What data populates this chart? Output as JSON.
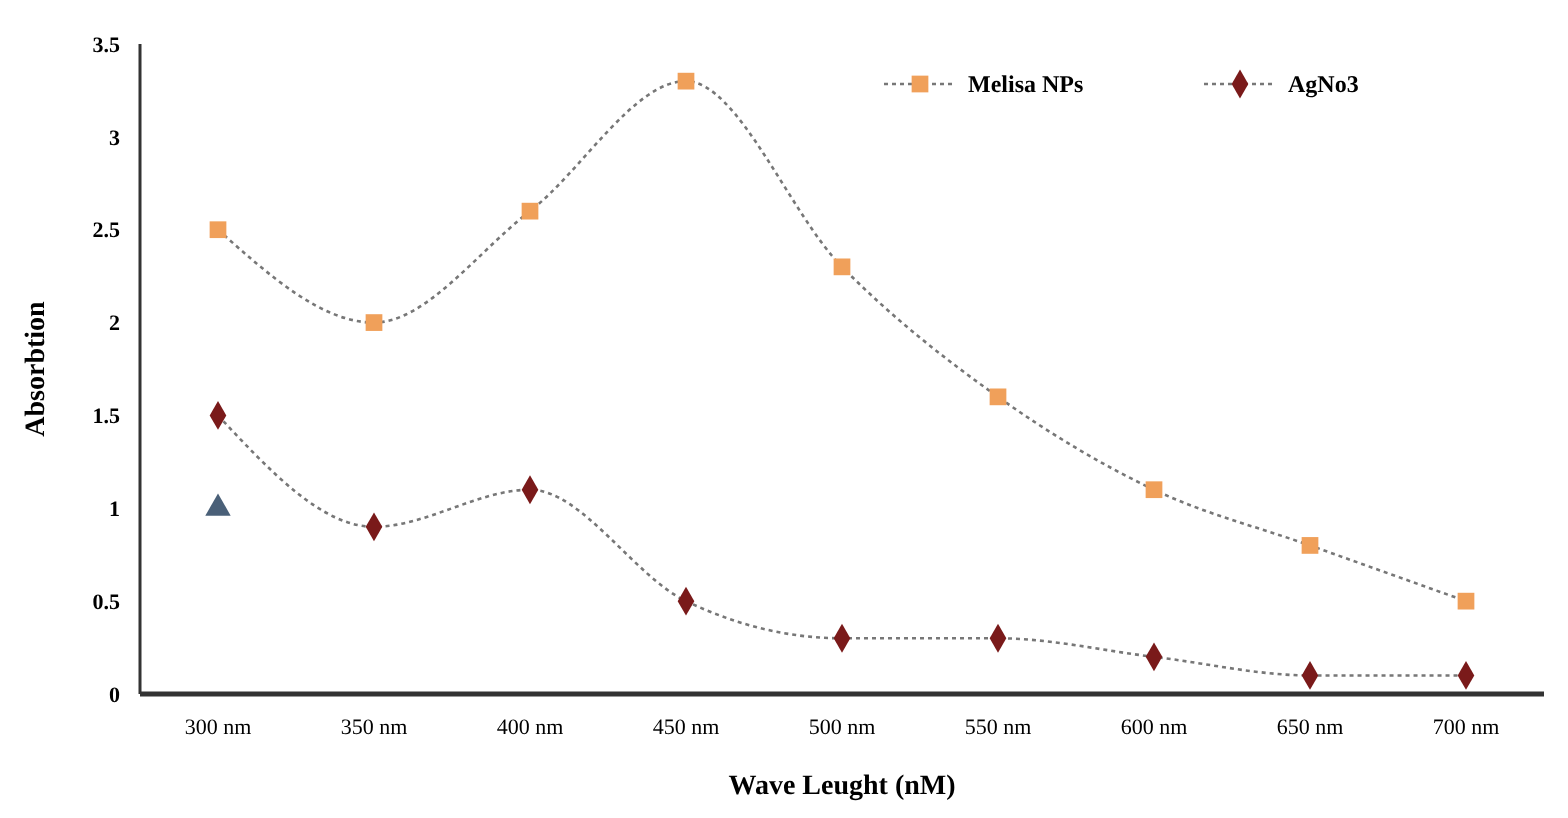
{
  "chart_data": {
    "type": "line",
    "xlabel": "Wave Leught (nM)",
    "ylabel": "Absorbtion",
    "categories": [
      "300 nm",
      "350 nm",
      "400 nm",
      "450 nm",
      "500 nm",
      "550 nm",
      "600 nm",
      "650 nm",
      "700 nm"
    ],
    "series": [
      {
        "name": "Melisa NPs",
        "color": "#f0a05a",
        "marker": "square",
        "values": [
          2.5,
          2.0,
          2.6,
          3.3,
          2.3,
          1.6,
          1.1,
          0.8,
          0.5
        ]
      },
      {
        "name": "AgNo3",
        "color": "#7a1a1a",
        "marker": "diamond",
        "values": [
          1.5,
          0.9,
          1.1,
          0.5,
          0.3,
          0.3,
          0.2,
          0.1,
          0.1
        ]
      },
      {
        "type": "scatter",
        "color": "#4a6078",
        "marker": "triangle",
        "values": [
          1.0,
          null,
          null,
          null,
          null,
          null,
          null,
          null,
          null
        ]
      }
    ],
    "ylim": [
      0,
      3.5
    ],
    "yticks": [
      0,
      0.5,
      1,
      1.5,
      2,
      2.5,
      3,
      3.5
    ],
    "grid": false,
    "legend": "top right",
    "line_style": "dotted"
  }
}
